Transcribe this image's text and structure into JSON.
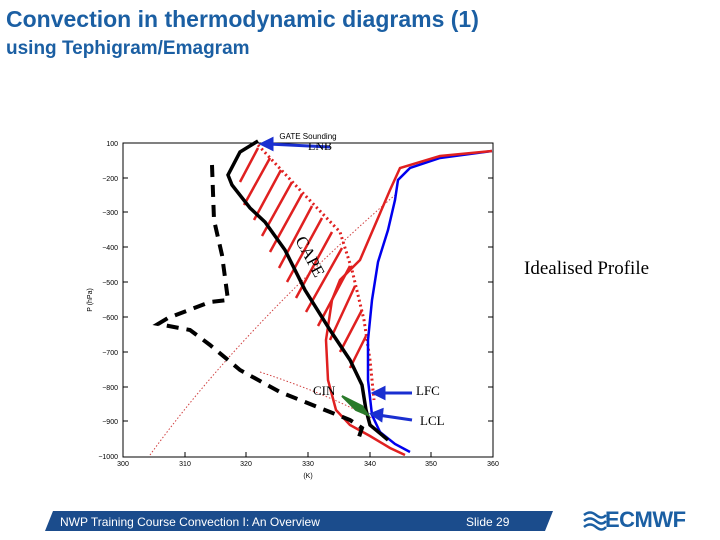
{
  "header": {
    "title": "Convection in thermodynamic diagrams (1)",
    "subtitle": "using Tephigram/Emagram"
  },
  "diagram": {
    "plot_title": "GATE Sounding",
    "y_axis_label": "P (hPa)",
    "x_axis_label": "(K)",
    "y_ticks": [
      "100",
      "−200",
      "−300",
      "−400",
      "−500",
      "−600",
      "−700",
      "−800",
      "−900",
      "−1000"
    ],
    "x_ticks": [
      "300",
      "310",
      "320",
      "330",
      "340",
      "350",
      "360"
    ],
    "labels": {
      "lnb": "LNB",
      "cape": "CAPE",
      "cin": "CIN",
      "lfc": "LFC",
      "lcl": "LCL",
      "idealised": "Idealised Profile"
    },
    "colors": {
      "environment": "#0000ee",
      "parcel": "#e02020",
      "dashed": "#000000",
      "cape_fill": "#e02020",
      "cin_fill": "#2a7a2a",
      "arrow": "#1a2fd0"
    }
  },
  "footer": {
    "course": "NWP Training Course Convection I: An Overview",
    "slide": "Slide 29",
    "logo_text": "ECMWF"
  }
}
